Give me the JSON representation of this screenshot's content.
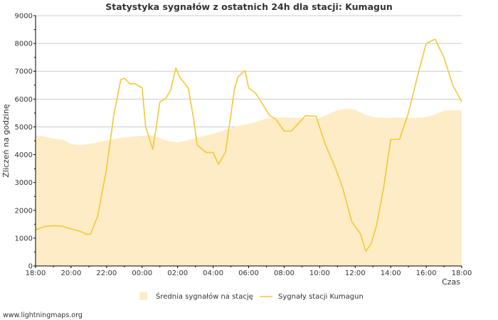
{
  "chart_data": {
    "type": "area+line",
    "title": "Statystyka sygnałów z ostatnich 24h dla stacji: Kumagun",
    "xlabel": "Czas",
    "ylabel": "Zliczeń na godzinę",
    "ylim": [
      0,
      9000
    ],
    "y_ticks": [
      "0",
      "1000",
      "2000",
      "3000",
      "4000",
      "5000",
      "6000",
      "7000",
      "8000",
      "9000"
    ],
    "y_tick_values": [
      0,
      1000,
      2000,
      3000,
      4000,
      5000,
      6000,
      7000,
      8000,
      9000
    ],
    "x_range_hours": [
      0,
      24
    ],
    "x_ticks": [
      "18:00",
      "20:00",
      "22:00",
      "00:00",
      "02:00",
      "04:00",
      "06:00",
      "08:00",
      "10:00",
      "12:00",
      "14:00",
      "16:00",
      "18:00"
    ],
    "grid": true,
    "series": [
      {
        "name": "Średnia sygnałów na stację",
        "kind": "area",
        "color": "#fdecc6",
        "x": [
          0,
          0.5,
          1,
          1.5,
          2,
          2.5,
          3,
          3.5,
          4,
          4.5,
          5,
          5.5,
          6,
          6.5,
          7,
          7.5,
          8,
          8.5,
          9,
          9.5,
          10,
          10.5,
          11,
          11.5,
          12,
          12.5,
          13,
          13.5,
          14,
          14.5,
          15,
          15.5,
          16,
          16.5,
          17,
          17.5,
          18,
          18.5,
          19,
          19.5,
          20,
          20.5,
          21,
          21.5,
          22,
          22.5,
          23,
          23.5,
          24
        ],
        "values": [
          4700,
          4650,
          4580,
          4550,
          4380,
          4350,
          4380,
          4450,
          4520,
          4570,
          4620,
          4650,
          4680,
          4700,
          4600,
          4480,
          4450,
          4500,
          4600,
          4680,
          4750,
          4850,
          4950,
          5050,
          5100,
          5200,
          5300,
          5320,
          5340,
          5330,
          5320,
          5320,
          5320,
          5450,
          5600,
          5660,
          5620,
          5450,
          5350,
          5330,
          5320,
          5340,
          5320,
          5330,
          5350,
          5450,
          5580,
          5600,
          5600
        ]
      },
      {
        "name": "Sygnały stacji Kumagun",
        "kind": "line",
        "color": "#f5c735",
        "x": [
          0,
          0.5,
          1,
          1.5,
          2,
          2.5,
          2.9,
          3.1,
          3.5,
          4.0,
          4.4,
          4.8,
          5.0,
          5.3,
          5.6,
          6.0,
          6.2,
          6.6,
          6.8,
          7.0,
          7.3,
          7.6,
          7.9,
          8.1,
          8.6,
          8.9,
          9.1,
          9.6,
          10.0,
          10.3,
          10.7,
          11.2,
          11.4,
          11.8,
          12.0,
          12.1,
          12.4,
          12.8,
          13.2,
          13.5,
          14.0,
          14.4,
          15.2,
          15.8,
          16.3,
          16.9,
          17.3,
          17.8,
          18.3,
          18.6,
          18.9,
          19.2,
          19.6,
          20.0,
          20.5,
          21.0,
          21.5,
          22.0,
          22.5,
          23.0,
          23.5,
          24.0
        ],
        "values": [
          1300,
          1420,
          1450,
          1430,
          1330,
          1250,
          1130,
          1150,
          1800,
          3500,
          5400,
          6700,
          6750,
          6550,
          6550,
          6400,
          5000,
          4200,
          5000,
          5900,
          6000,
          6300,
          7120,
          6800,
          6400,
          5300,
          4350,
          4080,
          4080,
          3650,
          4100,
          6350,
          6800,
          7020,
          6400,
          6350,
          6200,
          5800,
          5400,
          5300,
          4850,
          4850,
          5400,
          5380,
          4400,
          3500,
          2800,
          1600,
          1150,
          530,
          800,
          1450,
          2800,
          4550,
          4550,
          5500,
          6800,
          8000,
          8150,
          7500,
          6500,
          5900
        ]
      }
    ],
    "legend": {
      "position": "bottom",
      "items": [
        "Średnia sygnałów na stację",
        "Sygnały stacji Kumagun"
      ]
    }
  },
  "footer": {
    "credit": "www.lightningmaps.org"
  },
  "colors": {
    "area": "#fdecc6",
    "line": "#f5c735",
    "grid": "#cccccc",
    "axis": "#000000"
  }
}
